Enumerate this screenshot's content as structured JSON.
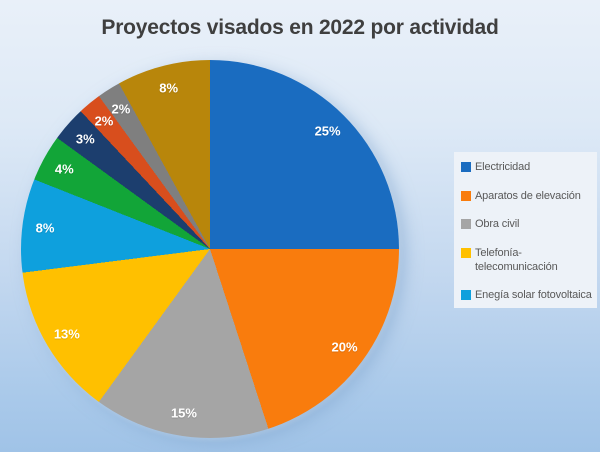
{
  "chart_data": {
    "type": "pie",
    "title": "Proyectos visados en 2022 por actividad",
    "legend_position": "right",
    "data_labels": "percent, inside end, white bold",
    "direction": "clockwise",
    "start_angle_deg": 0,
    "slices": [
      {
        "label": "Electricidad",
        "value": 25,
        "percent_label": "25%",
        "color": "#1A6CC0",
        "in_legend": true
      },
      {
        "label": "Aparatos de elevación",
        "value": 20,
        "percent_label": "20%",
        "color": "#F97C0D",
        "in_legend": true
      },
      {
        "label": "Obra civil",
        "value": 15,
        "percent_label": "15%",
        "color": "#A5A5A5",
        "in_legend": true
      },
      {
        "label": "Telefonía-telecomunicación",
        "value": 13,
        "percent_label": "13%",
        "color": "#FFC000",
        "in_legend": true
      },
      {
        "label": "Enegía solar fotovoltaica",
        "value": 8,
        "percent_label": "8%",
        "color": "#0EA0DD",
        "in_legend": true
      },
      {
        "label": "",
        "value": 4,
        "percent_label": "4%",
        "color": "#12A538",
        "in_legend": false
      },
      {
        "label": "",
        "value": 3,
        "percent_label": "3%",
        "color": "#1C3E6E",
        "in_legend": false
      },
      {
        "label": "",
        "value": 2,
        "percent_label": "2%",
        "color": "#D84E1D",
        "in_legend": false
      },
      {
        "label": "",
        "value": 2,
        "percent_label": "2%",
        "color": "#7F7F7F",
        "in_legend": false
      },
      {
        "label": "",
        "value": 8,
        "percent_label": "8%",
        "color": "#B8860B",
        "in_legend": false
      }
    ]
  }
}
